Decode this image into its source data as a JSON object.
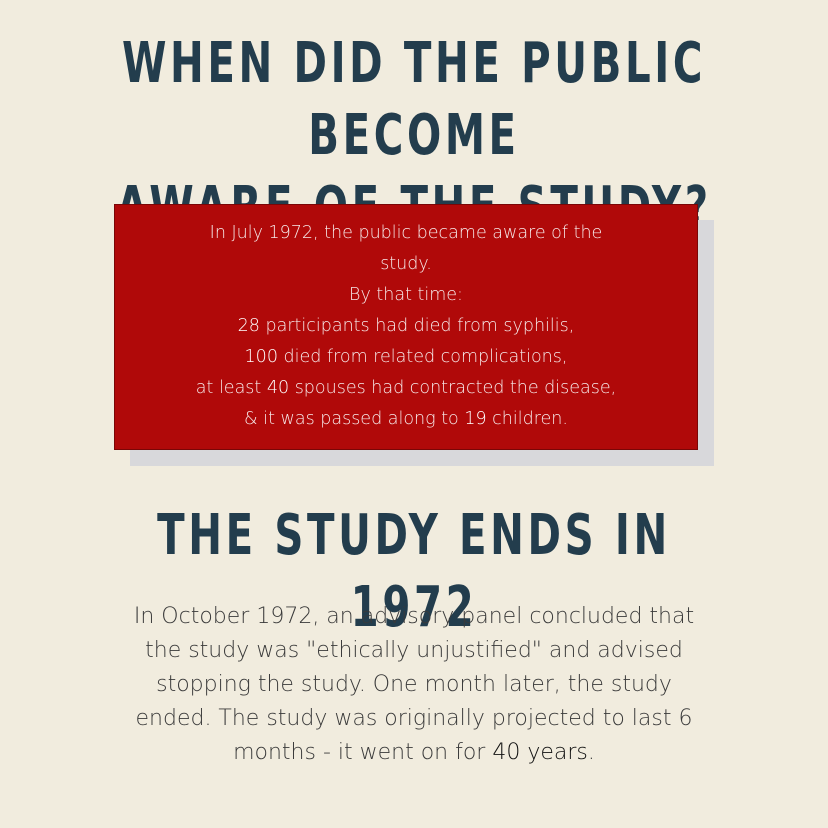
{
  "heading1": {
    "line1": "WHEN DID THE PUBLIC BECOME",
    "line2": "AWARE OF THE STUDY?"
  },
  "red_box": {
    "line1": "In July 1972, the public became aware of the",
    "line2": "study.",
    "line3": "By that time:",
    "line4_num": "28",
    "line4_rest": " participants had died from syphilis,",
    "line5_num": "100",
    "line5_rest": " died from related complications,",
    "line6_pre": "at least ",
    "line6_num": "40",
    "line6_rest": " spouses had contracted the disease,",
    "line7_pre": "& it was passed along to ",
    "line7_num": "19",
    "line7_rest": " children."
  },
  "heading2": "THE STUDY ENDS IN 1972",
  "body": {
    "line1": "In October 1972, an advisory panel concluded that",
    "line2": "the study was \"ethically unjustified\" and advised",
    "line3": "stopping the study. One month later, the study",
    "line4": "ended. The study was originally projected to last 6",
    "line5_pre": "months - it went on for ",
    "line5_emph": "40 years",
    "line5_post": "."
  },
  "colors": {
    "background": "#f1ecde",
    "heading": "#233d4d",
    "box": "#b00909",
    "box_shadow": "#d8d8db",
    "body_text": "#3a3a3a"
  }
}
